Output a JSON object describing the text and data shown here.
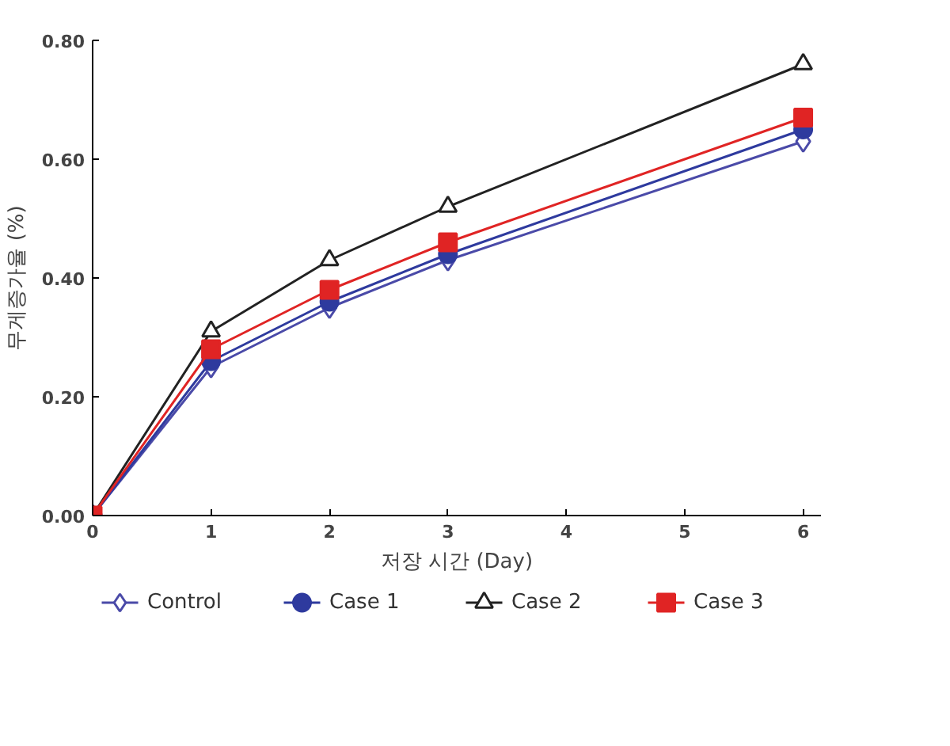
{
  "chart_data": {
    "type": "line",
    "xlabel": "저장 시간 (Day)",
    "ylabel": "무게증가율 (%)",
    "x": [
      0,
      1,
      2,
      3,
      6
    ],
    "xlim": [
      0,
      6.15
    ],
    "xticks": [
      0,
      1,
      2,
      3,
      4,
      5,
      6
    ],
    "ylim": [
      0,
      0.8
    ],
    "yticks": [
      {
        "value": 0,
        "label": "0.00"
      },
      {
        "value": 0.2,
        "label": "0.20"
      },
      {
        "value": 0.4,
        "label": "0.40"
      },
      {
        "value": 0.6,
        "label": "0.60"
      },
      {
        "value": 0.8,
        "label": "0.80"
      }
    ],
    "grid": false,
    "legend": "bottom",
    "line_style": "solid",
    "series": [
      {
        "name": "Control",
        "color": "#4a4aa8",
        "marker": "diamond",
        "values": [
          0,
          0.25,
          0.35,
          0.43,
          0.63
        ]
      },
      {
        "name": "Case 1",
        "color": "#2e3a9e",
        "marker": "circle",
        "values": [
          0,
          0.26,
          0.36,
          0.44,
          0.65
        ]
      },
      {
        "name": "Case 2",
        "color": "#222222",
        "marker": "triangle",
        "values": [
          0,
          0.31,
          0.43,
          0.52,
          0.76
        ]
      },
      {
        "name": "Case 3",
        "color": "#e02424",
        "marker": "square",
        "values": [
          0,
          0.28,
          0.38,
          0.46,
          0.67
        ]
      }
    ]
  }
}
